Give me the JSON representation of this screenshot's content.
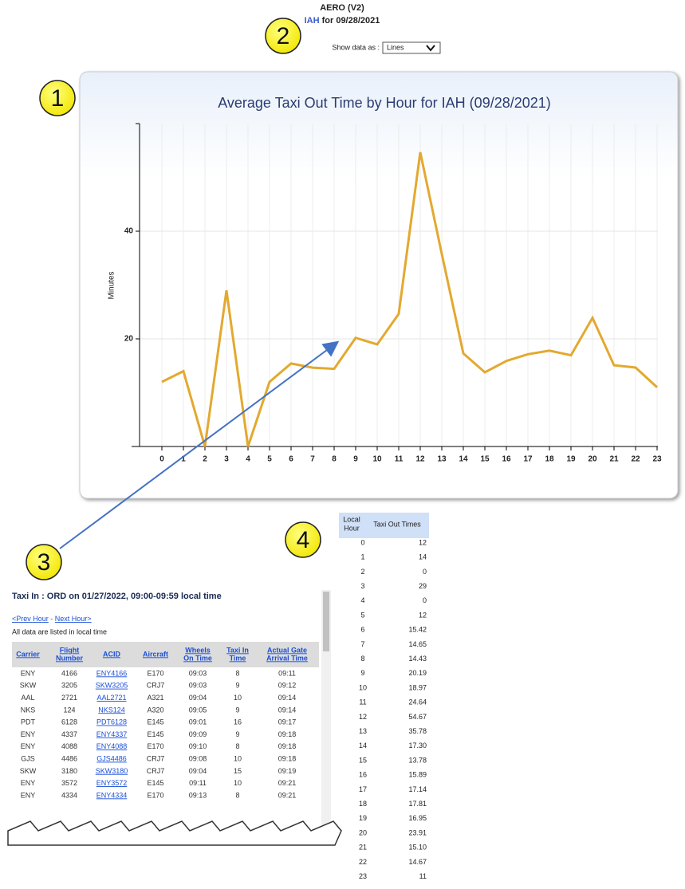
{
  "header": {
    "app": "AERO (V2)",
    "airport": "IAH",
    "date_text": " for 09/28/2021",
    "control_label": "Show data as :",
    "control_value": "Lines"
  },
  "callouts": [
    "1",
    "2",
    "3",
    "4"
  ],
  "chart_data": {
    "type": "line",
    "title": "Average Taxi Out Time by Hour for IAH (09/28/2021)",
    "y_label": "Minutes",
    "categories": [
      "0",
      "1",
      "2",
      "3",
      "4",
      "5",
      "6",
      "7",
      "8",
      "9",
      "10",
      "11",
      "12",
      "13",
      "14",
      "15",
      "16",
      "17",
      "18",
      "19",
      "20",
      "21",
      "22",
      "23"
    ],
    "values": [
      12,
      14,
      0,
      29,
      0,
      12,
      15.42,
      14.65,
      14.43,
      20.19,
      18.97,
      24.64,
      54.67,
      35.78,
      17.3,
      13.78,
      15.89,
      17.14,
      17.81,
      16.95,
      23.91,
      15.1,
      14.67,
      11
    ],
    "color": "#e3a92f",
    "ylim": [
      0,
      60
    ],
    "yticks": [
      20,
      40
    ],
    "grid": true
  },
  "table": {
    "headers": [
      [
        "Local",
        "Hour"
      ],
      [
        "Taxi Out Times"
      ]
    ],
    "rows": [
      [
        "0",
        "12"
      ],
      [
        "1",
        "14"
      ],
      [
        "2",
        "0"
      ],
      [
        "3",
        "29"
      ],
      [
        "4",
        "0"
      ],
      [
        "5",
        "12"
      ],
      [
        "6",
        "15.42"
      ],
      [
        "7",
        "14.65"
      ],
      [
        "8",
        "14.43"
      ],
      [
        "9",
        "20.19"
      ],
      [
        "10",
        "18.97"
      ],
      [
        "11",
        "24.64"
      ],
      [
        "12",
        "54.67"
      ],
      [
        "13",
        "35.78"
      ],
      [
        "14",
        "17.30"
      ],
      [
        "15",
        "13.78"
      ],
      [
        "16",
        "15.89"
      ],
      [
        "17",
        "17.14"
      ],
      [
        "18",
        "17.81"
      ],
      [
        "19",
        "16.95"
      ],
      [
        "20",
        "23.91"
      ],
      [
        "21",
        "15.10"
      ],
      [
        "22",
        "14.67"
      ],
      [
        "23",
        "11"
      ]
    ]
  },
  "inset": {
    "title": "Taxi In : ORD on 01/27/2022, 09:00-09:59 local time",
    "prev": "<Prev Hour",
    "sep": " - ",
    "next": "Next Hour>",
    "note": "All data are listed in local time",
    "headers": [
      [
        "Carrier"
      ],
      [
        "Flight",
        "Number"
      ],
      [
        "ACID"
      ],
      [
        "Aircraft"
      ],
      [
        "Wheels",
        "On Time"
      ],
      [
        "Taxi In",
        "Time"
      ],
      [
        "Actual Gate",
        "Arrival Time"
      ]
    ],
    "rows": [
      [
        "ENY",
        "4166",
        "ENY4166",
        "E170",
        "09:03",
        "8",
        "09:11"
      ],
      [
        "SKW",
        "3205",
        "SKW3205",
        "CRJ7",
        "09:03",
        "9",
        "09:12"
      ],
      [
        "AAL",
        "2721",
        "AAL2721",
        "A321",
        "09:04",
        "10",
        "09:14"
      ],
      [
        "NKS",
        "124",
        "NKS124",
        "A320",
        "09:05",
        "9",
        "09:14"
      ],
      [
        "PDT",
        "6128",
        "PDT6128",
        "E145",
        "09:01",
        "16",
        "09:17"
      ],
      [
        "ENY",
        "4337",
        "ENY4337",
        "E145",
        "09:09",
        "9",
        "09:18"
      ],
      [
        "ENY",
        "4088",
        "ENY4088",
        "E170",
        "09:10",
        "8",
        "09:18"
      ],
      [
        "GJS",
        "4486",
        "GJS4486",
        "CRJ7",
        "09:08",
        "10",
        "09:18"
      ],
      [
        "SKW",
        "3180",
        "SKW3180",
        "CRJ7",
        "09:04",
        "15",
        "09:19"
      ],
      [
        "ENY",
        "3572",
        "ENY3572",
        "E145",
        "09:11",
        "10",
        "09:21"
      ],
      [
        "ENY",
        "4334",
        "ENY4334",
        "E170",
        "09:13",
        "8",
        "09:21"
      ]
    ]
  }
}
